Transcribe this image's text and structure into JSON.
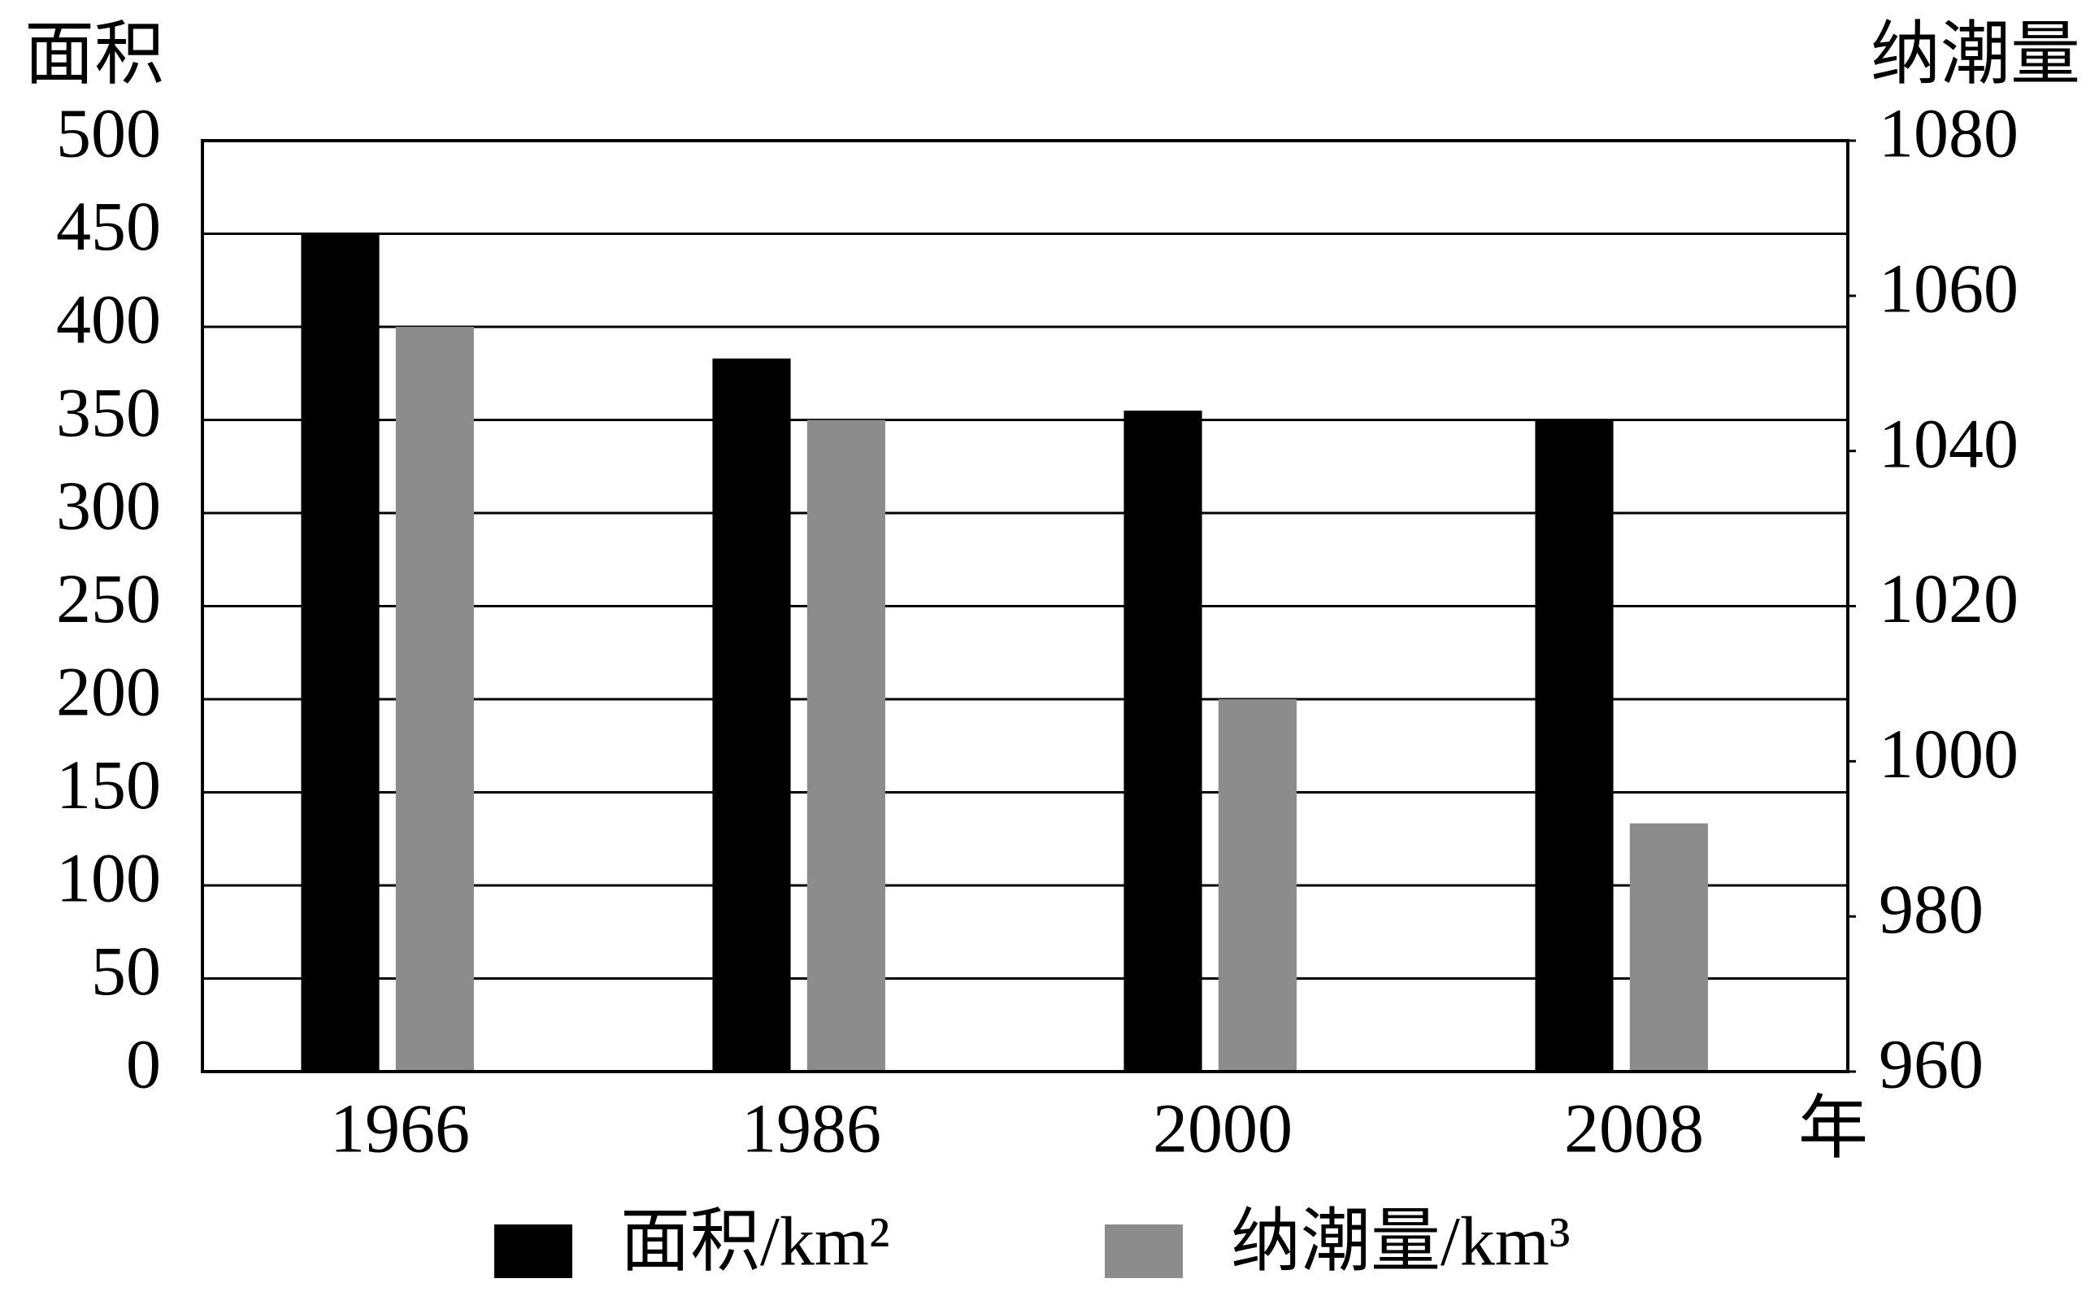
{
  "chart_data": {
    "type": "bar",
    "y_axis_title": "面积",
    "y2_axis_title": "纳潮量",
    "x_axis_unit": "年",
    "categories": [
      "1966",
      "1986",
      "2000",
      "2008"
    ],
    "series": [
      {
        "name": "面积/km²",
        "color": "#000000",
        "values": [
          450,
          383,
          355,
          350
        ]
      },
      {
        "name": "纳潮量/km³",
        "color": "#8c8c8c",
        "axis": "y2",
        "values": [
          1056,
          1044,
          1008,
          992
        ]
      }
    ],
    "ylim": [
      0,
      500
    ],
    "yticks": [
      0,
      50,
      100,
      150,
      200,
      250,
      300,
      350,
      400,
      450,
      500
    ],
    "y2lim": [
      960,
      1080
    ],
    "y2ticks": [
      960,
      980,
      1000,
      1020,
      1040,
      1060,
      1080
    ],
    "grid": true,
    "legend": "bottom"
  }
}
